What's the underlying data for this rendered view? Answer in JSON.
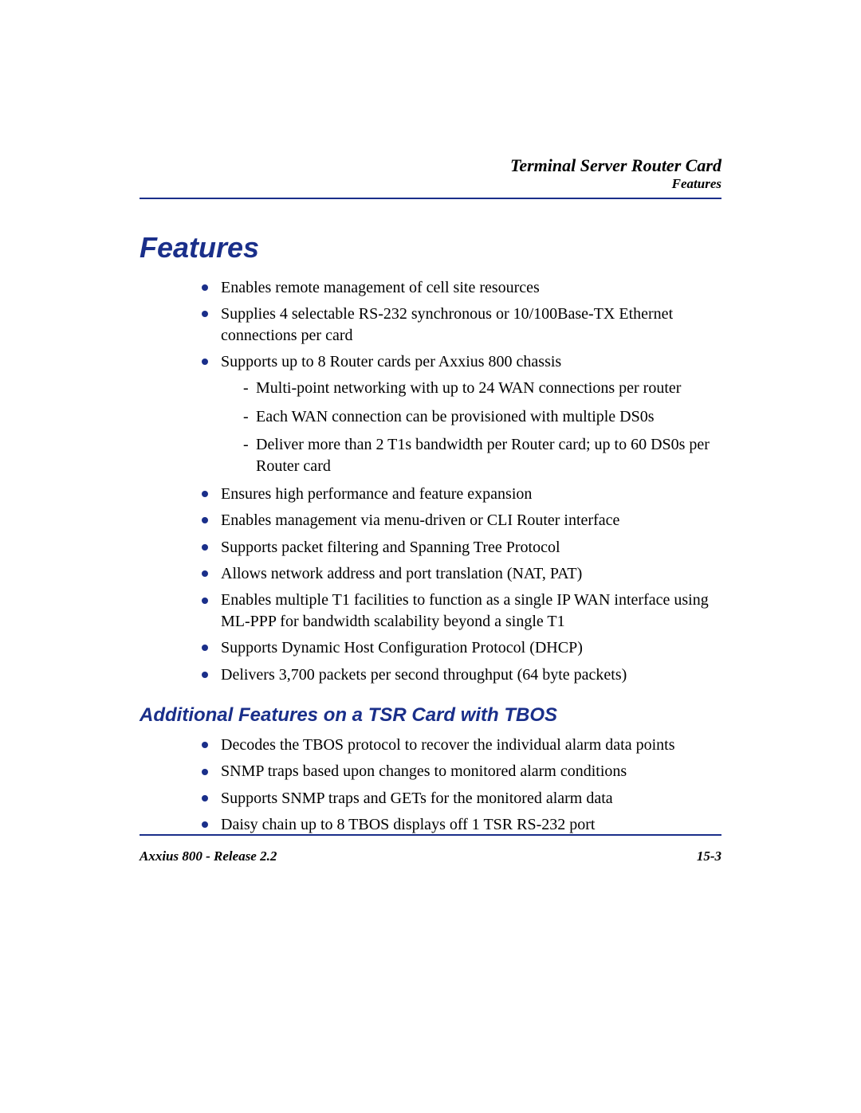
{
  "colors": {
    "accent": "#1a2f8a",
    "text": "#000000",
    "background": "#ffffff"
  },
  "typography": {
    "body_font": "Times New Roman",
    "heading_font": "Arial",
    "h1_fontsize_pt": 27,
    "h2_fontsize_pt": 18,
    "body_fontsize_pt": 15,
    "header_title_fontsize_pt": 16,
    "header_sub_fontsize_pt": 13,
    "footer_fontsize_pt": 13
  },
  "header": {
    "title": "Terminal Server Router Card",
    "subtitle": "Features"
  },
  "headings": {
    "main": "Features",
    "additional": "Additional Features on a TSR Card with TBOS"
  },
  "features": {
    "items": [
      {
        "text": "Enables remote management of cell site resources"
      },
      {
        "text": "Supplies 4 selectable RS-232 synchronous or 10/100Base-TX Ethernet connections per card"
      },
      {
        "text": "Supports up to 8 Router cards per Axxius 800 chassis",
        "sub": [
          "Multi-point networking with up to 24 WAN connections per router",
          "Each WAN connection can be provisioned with multiple DS0s",
          "Deliver more than 2 T1s bandwidth per Router card; up to 60 DS0s per Router card"
        ]
      },
      {
        "text": "Ensures high performance and feature expansion"
      },
      {
        "text": "Enables management via menu-driven or CLI Router interface"
      },
      {
        "text": "Supports packet filtering and Spanning Tree Protocol"
      },
      {
        "text": "Allows network address and port translation (NAT, PAT)"
      },
      {
        "text": "Enables multiple T1 facilities to function as a single IP WAN interface using ML-PPP for bandwidth scalability beyond a single T1"
      },
      {
        "text": "Supports Dynamic Host Configuration Protocol (DHCP)"
      },
      {
        "text": "Delivers 3,700 packets per second throughput (64 byte packets)"
      }
    ]
  },
  "additional_features": {
    "items": [
      {
        "text": "Decodes the TBOS protocol to recover the individual alarm data points"
      },
      {
        "text": "SNMP traps based upon changes to monitored alarm conditions"
      },
      {
        "text": "Supports SNMP traps and GETs for the monitored alarm data"
      },
      {
        "text": "Daisy chain up to 8 TBOS displays off 1 TSR RS-232 port"
      }
    ]
  },
  "footer": {
    "left": "Axxius 800 - Release 2.2",
    "right": "15-3"
  }
}
